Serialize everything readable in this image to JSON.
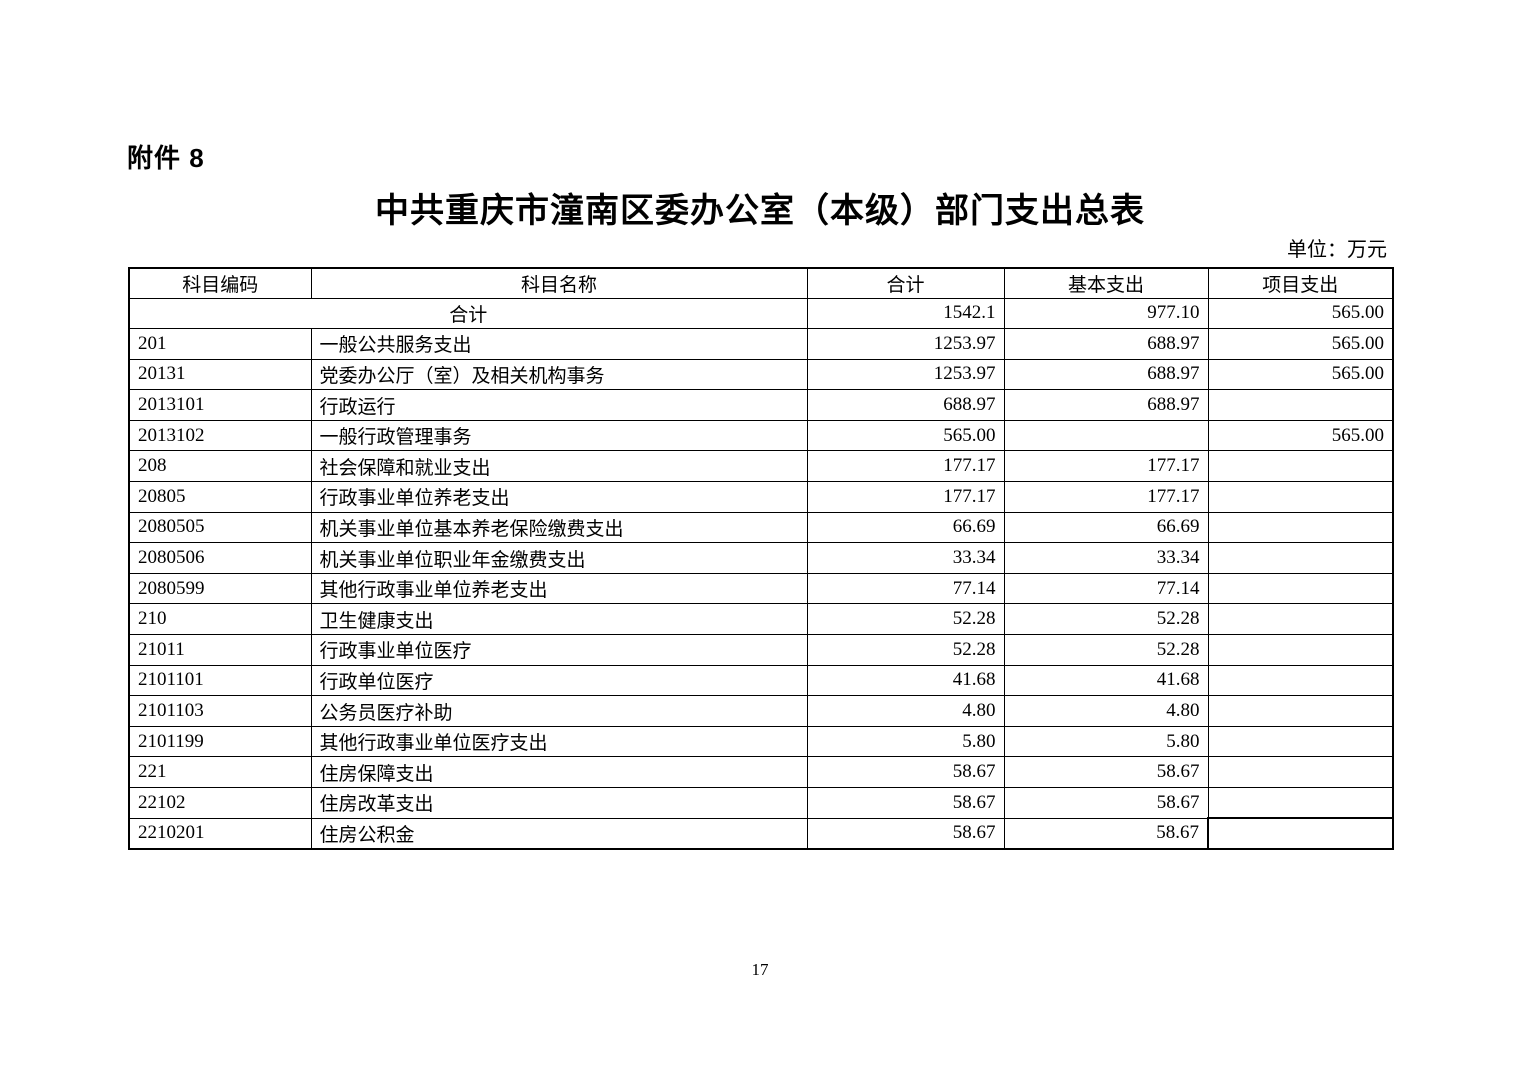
{
  "page": {
    "attachment_label": "附件 8",
    "title": "中共重庆市潼南区委办公室（本级）部门支出总表",
    "unit_note": "单位：万元",
    "page_number": "17"
  },
  "table": {
    "columns": [
      "科目编码",
      "科目名称",
      "合计",
      "基本支出",
      "项目支出"
    ],
    "rows": [
      {
        "code": "",
        "name": "合计",
        "merged": true,
        "total": "1542.1",
        "basic": "977.10",
        "project": "565.00"
      },
      {
        "code": "201",
        "name": "一般公共服务支出",
        "merged": false,
        "total": "1253.97",
        "basic": "688.97",
        "project": "565.00"
      },
      {
        "code": "20131",
        "name": "党委办公厅（室）及相关机构事务",
        "merged": false,
        "total": "1253.97",
        "basic": "688.97",
        "project": "565.00"
      },
      {
        "code": "2013101",
        "name": "行政运行",
        "merged": false,
        "total": "688.97",
        "basic": "688.97",
        "project": ""
      },
      {
        "code": "2013102",
        "name": "一般行政管理事务",
        "merged": false,
        "total": "565.00",
        "basic": "",
        "project": "565.00"
      },
      {
        "code": "208",
        "name": "社会保障和就业支出",
        "merged": false,
        "total": "177.17",
        "basic": "177.17",
        "project": ""
      },
      {
        "code": "20805",
        "name": "行政事业单位养老支出",
        "merged": false,
        "total": "177.17",
        "basic": "177.17",
        "project": ""
      },
      {
        "code": "2080505",
        "name": "机关事业单位基本养老保险缴费支出",
        "merged": false,
        "total": "66.69",
        "basic": "66.69",
        "project": ""
      },
      {
        "code": "2080506",
        "name": "机关事业单位职业年金缴费支出",
        "merged": false,
        "total": "33.34",
        "basic": "33.34",
        "project": ""
      },
      {
        "code": "2080599",
        "name": "其他行政事业单位养老支出",
        "merged": false,
        "total": "77.14",
        "basic": "77.14",
        "project": ""
      },
      {
        "code": "210",
        "name": "卫生健康支出",
        "merged": false,
        "total": "52.28",
        "basic": "52.28",
        "project": ""
      },
      {
        "code": "21011",
        "name": "行政事业单位医疗",
        "merged": false,
        "total": "52.28",
        "basic": "52.28",
        "project": ""
      },
      {
        "code": "2101101",
        "name": "行政单位医疗",
        "merged": false,
        "total": "41.68",
        "basic": "41.68",
        "project": ""
      },
      {
        "code": "2101103",
        "name": "公务员医疗补助",
        "merged": false,
        "total": "4.80",
        "basic": "4.80",
        "project": ""
      },
      {
        "code": "2101199",
        "name": "其他行政事业单位医疗支出",
        "merged": false,
        "total": "5.80",
        "basic": "5.80",
        "project": ""
      },
      {
        "code": "221",
        "name": "住房保障支出",
        "merged": false,
        "total": "58.67",
        "basic": "58.67",
        "project": ""
      },
      {
        "code": "22102",
        "name": "住房改革支出",
        "merged": false,
        "total": "58.67",
        "basic": "58.67",
        "project": ""
      },
      {
        "code": "2210201",
        "name": "住房公积金",
        "merged": false,
        "total": "58.67",
        "basic": "58.67",
        "project": ""
      }
    ]
  }
}
